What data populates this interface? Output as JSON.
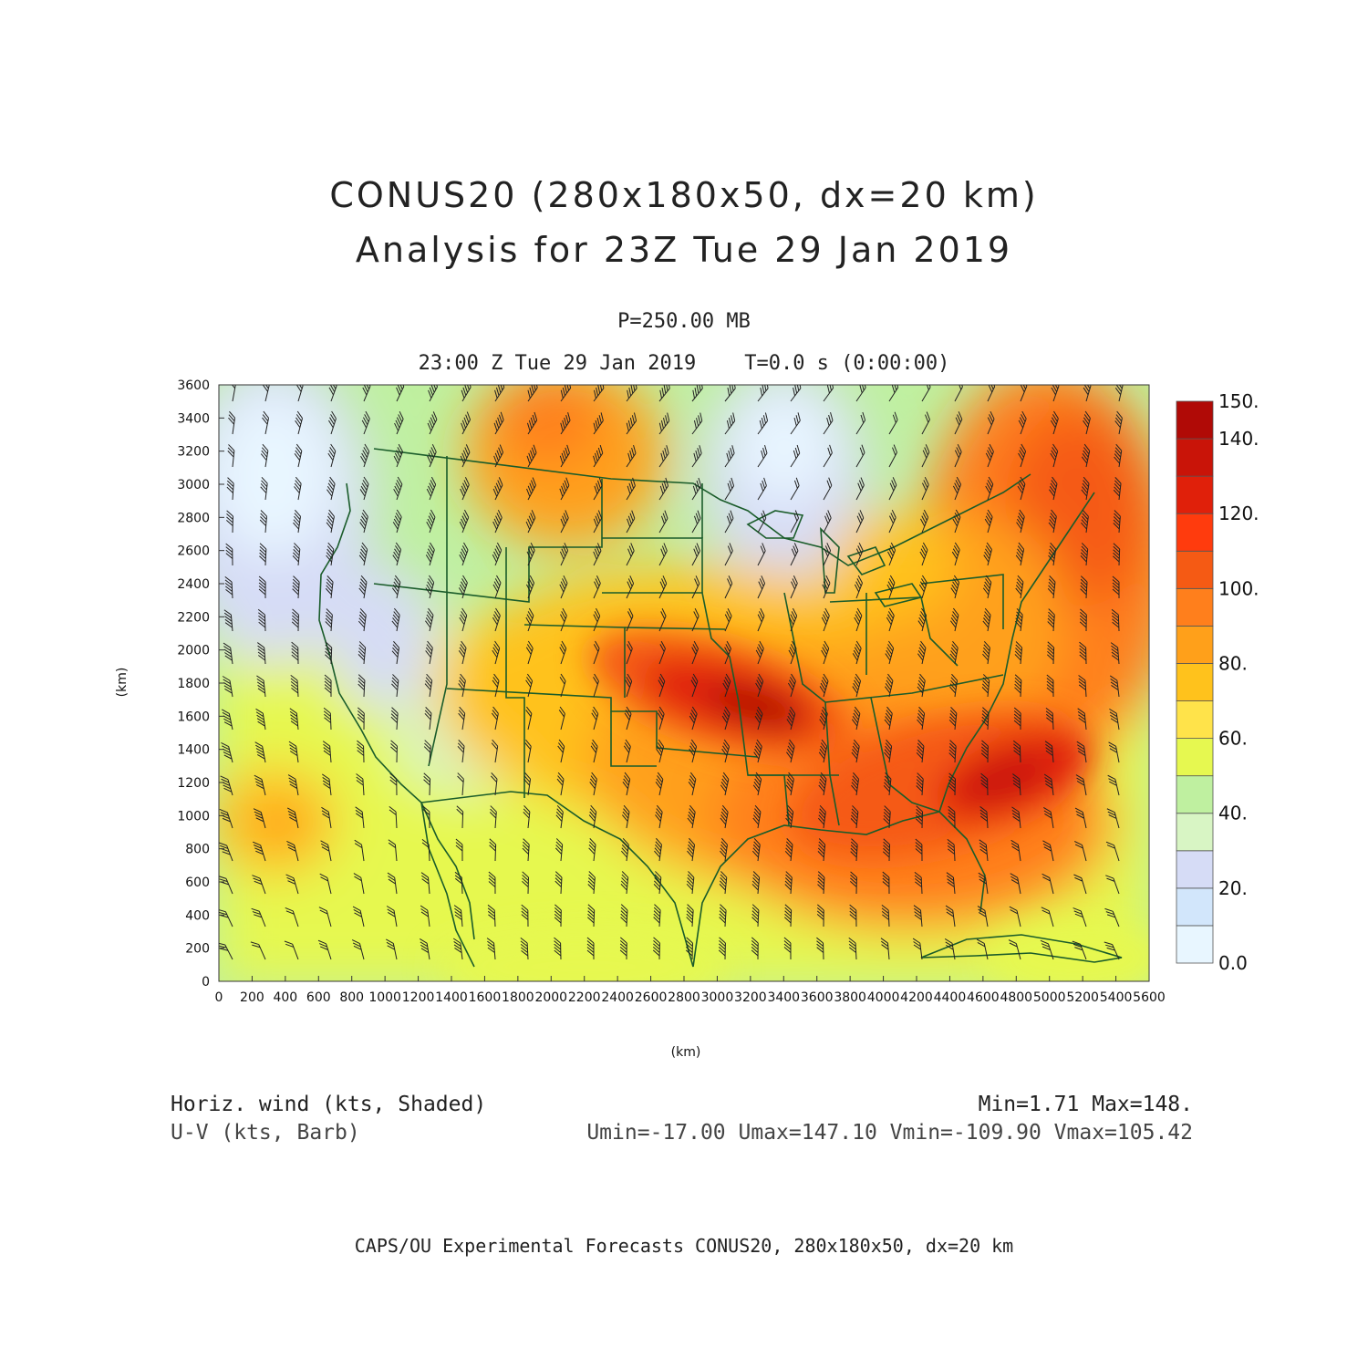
{
  "header": {
    "title_line1": "CONUS20 (280x180x50, dx=20 km)",
    "title_line2": "Analysis for 23Z Tue 29 Jan 2019",
    "level": "P=250.00 MB",
    "time": "23:00 Z Tue 29 Jan 2019    T=0.0 s (0:00:00)"
  },
  "axes": {
    "x_label": "(km)",
    "y_label": "(km)",
    "x_ticks": [
      "0",
      "200",
      "400",
      "600",
      "800",
      "1000",
      "1200",
      "1400",
      "1600",
      "1800",
      "2000",
      "2200",
      "2400",
      "2600",
      "2800",
      "3000",
      "3200",
      "3400",
      "3600",
      "3800",
      "4000",
      "4200",
      "4400",
      "4600",
      "4800",
      "5000",
      "5200",
      "5400",
      "5600"
    ],
    "y_ticks": [
      "0",
      "200",
      "400",
      "600",
      "800",
      "1000",
      "1200",
      "1400",
      "1600",
      "1800",
      "2000",
      "2200",
      "2400",
      "2600",
      "2800",
      "3000",
      "3200",
      "3400",
      "3600"
    ],
    "x_range": [
      0,
      5600
    ],
    "y_range": [
      0,
      3600
    ]
  },
  "colorbar": {
    "labels": [
      "0.0",
      "20.",
      "40.",
      "60.",
      "80.",
      "100.",
      "120.",
      "140.",
      "150."
    ],
    "colors": [
      "#e8f6ff",
      "#d2e6fb",
      "#d6dcf6",
      "#d8f5c4",
      "#bff0a0",
      "#e6f850",
      "#ffe34a",
      "#ffc21c",
      "#ffa01a",
      "#ff7f1c",
      "#f55a14",
      "#ff3b0d",
      "#e0200a",
      "#c91408",
      "#b00a06"
    ]
  },
  "legend": {
    "shaded": "Horiz. wind (kts, Shaded)",
    "barb": "U-V (kts, Barb)",
    "minmax": "Min=1.71 Max=148.",
    "uv_stats": "Umin=-17.00 Umax=147.10 Vmin=-109.90 Vmax=105.42"
  },
  "footer": "CAPS/OU Experimental Forecasts  CONUS20, 280x180x50, dx=20 km",
  "map": {
    "jet_core_max_kts": 148,
    "border_color": "#1a5c2a"
  }
}
